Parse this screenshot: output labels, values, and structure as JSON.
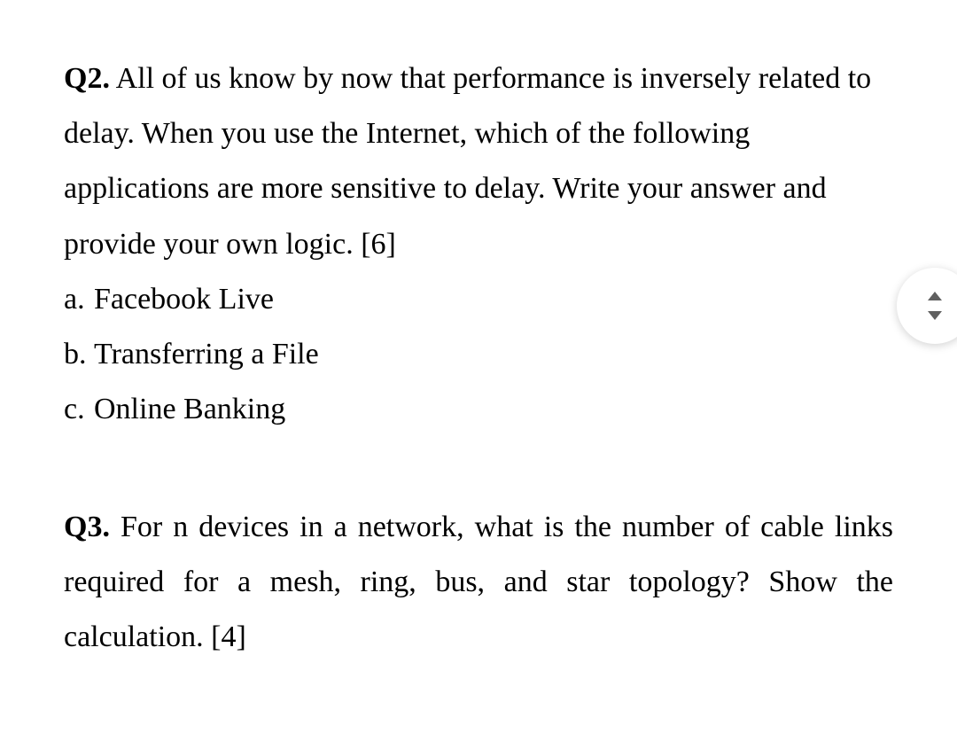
{
  "q2": {
    "label": "Q2.",
    "text": "All of us know by now that performance is inversely related to delay. When you use the Internet, which of the following applications are more sensitive to delay. Write your answer and provide your own logic. [6]",
    "options": [
      {
        "letter": "a.",
        "text": "Facebook Live"
      },
      {
        "letter": "b.",
        "text": "Transferring a File"
      },
      {
        "letter": "c.",
        "text": "Online Banking"
      }
    ]
  },
  "q3": {
    "label": "Q3.",
    "text": "For n devices in a network, what is the number of cable links required for a mesh, ring, bus, and star topology? Show the calculation. [4]"
  },
  "style": {
    "font_family": "Times New Roman",
    "font_size_pt": 26,
    "text_color": "#000000",
    "background_color": "#ffffff",
    "scroll_button_shadow": "rgba(0,0,0,0.18)",
    "scroll_arrow_color": "#606060"
  }
}
